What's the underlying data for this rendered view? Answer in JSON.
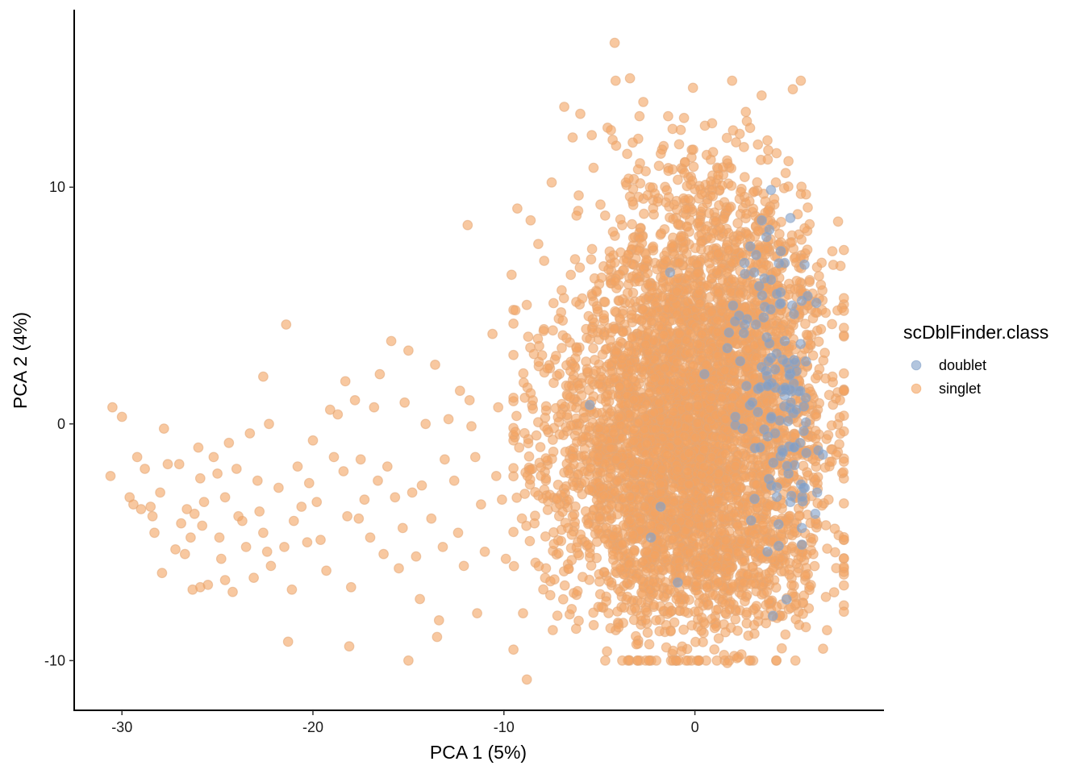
{
  "chart_data": {
    "type": "scatter",
    "title": "",
    "xlabel": "PCA 1 (5%)",
    "ylabel": "PCA 2 (4%)",
    "xlim": [
      -32.5,
      9.9
    ],
    "ylim": [
      -12.1,
      17.5
    ],
    "x_ticks": [
      -30,
      -20,
      -10,
      0
    ],
    "x_tick_labels": [
      "-30",
      "-20",
      "-10",
      "0"
    ],
    "y_ticks": [
      -10,
      0,
      10
    ],
    "y_tick_labels": [
      "-10",
      "0",
      "10"
    ],
    "grid": false,
    "legend": {
      "title": "scDblFinder.class",
      "placement": "right",
      "entries": [
        "doublet",
        "singlet"
      ]
    },
    "point_alpha": 0.6,
    "series": [
      {
        "name": "singlet",
        "color": "#f4a460",
        "clusters": [
          {
            "cx": 0.0,
            "cy": 0.0,
            "sx": 2.9,
            "sy": 4.2,
            "n": 3200
          },
          {
            "cx": -3.5,
            "cy": -1.5,
            "sx": 1.8,
            "sy": 3.0,
            "n": 500
          },
          {
            "cx": 1.0,
            "cy": 6.5,
            "sx": 2.6,
            "sy": 2.8,
            "n": 500
          },
          {
            "cx": 1.0,
            "cy": -6.0,
            "sx": 3.0,
            "sy": 1.4,
            "n": 350
          },
          {
            "cx": 4.5,
            "cy": 0.0,
            "sx": 1.6,
            "sy": 3.5,
            "n": 350
          },
          {
            "cx": -7.0,
            "cy": -1.5,
            "sx": 1.8,
            "sy": 3.0,
            "n": 160
          }
        ],
        "points": [
          [
            -30.5,
            0.7
          ],
          [
            -30.0,
            0.3
          ],
          [
            -30.6,
            -2.2
          ],
          [
            -29.6,
            -3.1
          ],
          [
            -29.4,
            -3.4
          ],
          [
            -29.2,
            -1.4
          ],
          [
            -28.8,
            -1.9
          ],
          [
            -28.5,
            -3.5
          ],
          [
            -28.4,
            -3.9
          ],
          [
            -28.3,
            -4.6
          ],
          [
            -27.8,
            -0.2
          ],
          [
            -27.6,
            -1.7
          ],
          [
            -27.9,
            -6.3
          ],
          [
            -27.0,
            -1.7
          ],
          [
            -26.6,
            -3.6
          ],
          [
            -26.2,
            -3.8
          ],
          [
            -26.4,
            -4.8
          ],
          [
            -26.7,
            -5.5
          ],
          [
            -26.3,
            -7.0
          ],
          [
            -26.0,
            -1.0
          ],
          [
            -25.9,
            -2.3
          ],
          [
            -25.8,
            -4.3
          ],
          [
            -25.7,
            -3.3
          ],
          [
            -25.5,
            -6.8
          ],
          [
            -25.2,
            -1.4
          ],
          [
            -25.0,
            -2.1
          ],
          [
            -24.9,
            -4.8
          ],
          [
            -24.8,
            -5.7
          ],
          [
            -24.6,
            -6.6
          ],
          [
            -24.2,
            -7.1
          ],
          [
            -24.0,
            -1.9
          ],
          [
            -23.9,
            -3.9
          ],
          [
            -23.7,
            -4.1
          ],
          [
            -23.5,
            -5.2
          ],
          [
            -23.3,
            -0.4
          ],
          [
            -22.9,
            -2.4
          ],
          [
            -22.8,
            -3.7
          ],
          [
            -22.6,
            -4.6
          ],
          [
            -22.4,
            -5.4
          ],
          [
            -22.2,
            -6.0
          ],
          [
            -23.1,
            -6.5
          ],
          [
            -24.6,
            -3.1
          ],
          [
            -25.9,
            -6.9
          ],
          [
            -26.9,
            -4.2
          ],
          [
            -27.2,
            -5.3
          ],
          [
            -28.0,
            -2.9
          ],
          [
            -29.0,
            -3.6
          ],
          [
            -24.4,
            -0.8
          ],
          [
            -22.6,
            2.0
          ],
          [
            -22.3,
            0.0
          ],
          [
            -21.8,
            -2.7
          ],
          [
            -21.5,
            -5.2
          ],
          [
            -21.1,
            -7.0
          ],
          [
            -21.0,
            -4.1
          ],
          [
            -21.4,
            4.2
          ],
          [
            -20.8,
            -1.8
          ],
          [
            -20.6,
            -3.5
          ],
          [
            -20.3,
            -5.0
          ],
          [
            -20.0,
            -0.7
          ],
          [
            -19.8,
            -3.3
          ],
          [
            -19.6,
            -4.9
          ],
          [
            -19.3,
            -6.2
          ],
          [
            -18.9,
            -1.4
          ],
          [
            -18.7,
            0.4
          ],
          [
            -18.4,
            -2.0
          ],
          [
            -18.2,
            -3.9
          ],
          [
            -18.0,
            -6.9
          ],
          [
            -18.3,
            1.8
          ],
          [
            -17.8,
            1.0
          ],
          [
            -17.5,
            -1.5
          ],
          [
            -17.3,
            -3.2
          ],
          [
            -17.0,
            -4.8
          ],
          [
            -16.8,
            0.7
          ],
          [
            -16.6,
            -2.4
          ],
          [
            -16.3,
            -5.5
          ],
          [
            -16.1,
            -1.8
          ],
          [
            -15.9,
            3.5
          ],
          [
            -15.7,
            -3.1
          ],
          [
            -15.5,
            -6.1
          ],
          [
            -15.2,
            0.9
          ],
          [
            -15.0,
            3.1
          ],
          [
            -14.8,
            -2.9
          ],
          [
            -14.6,
            -5.6
          ],
          [
            -14.4,
            -7.4
          ],
          [
            -14.1,
            0.0
          ],
          [
            -13.8,
            -4.0
          ],
          [
            -13.6,
            2.5
          ],
          [
            -13.4,
            -8.3
          ],
          [
            -13.1,
            -1.5
          ],
          [
            -12.9,
            0.2
          ],
          [
            -12.6,
            -2.4
          ],
          [
            -12.4,
            -4.6
          ],
          [
            -12.1,
            -6.0
          ],
          [
            -11.8,
            1.0
          ],
          [
            -11.5,
            -1.4
          ],
          [
            -11.2,
            -3.4
          ],
          [
            -11.0,
            -5.4
          ],
          [
            -10.6,
            3.8
          ],
          [
            -10.3,
            0.7
          ],
          [
            -10.1,
            -3.2
          ],
          [
            -9.9,
            -5.7
          ],
          [
            -9.6,
            6.3
          ],
          [
            -9.4,
            4.8
          ],
          [
            -9.2,
            -1.0
          ],
          [
            -9.0,
            -8.0
          ],
          [
            -8.8,
            -10.8
          ],
          [
            -8.6,
            1.3
          ],
          [
            -8.4,
            -4.2
          ],
          [
            -8.2,
            7.6
          ],
          [
            -8.0,
            2.9
          ],
          [
            -7.8,
            -6.1
          ],
          [
            -7.6,
            -3.0
          ],
          [
            -7.4,
            5.1
          ],
          [
            -7.2,
            -8.1
          ],
          [
            -7.0,
            0.4
          ],
          [
            -10.4,
            -2.2
          ],
          [
            -11.7,
            -0.1
          ],
          [
            -12.3,
            1.4
          ],
          [
            -13.2,
            -5.2
          ],
          [
            -14.3,
            -2.6
          ],
          [
            -15.3,
            -4.4
          ],
          [
            -16.5,
            2.1
          ],
          [
            -17.6,
            -4.0
          ],
          [
            -19.1,
            0.6
          ],
          [
            -20.2,
            -2.5
          ],
          [
            -18.1,
            -9.4
          ],
          [
            -21.3,
            -9.2
          ],
          [
            -15.0,
            -10.0
          ],
          [
            -13.5,
            -9.0
          ],
          [
            -11.4,
            -8.0
          ],
          [
            -4.2,
            16.1
          ],
          [
            -3.4,
            14.6
          ],
          [
            -2.7,
            13.6
          ],
          [
            -0.1,
            14.2
          ],
          [
            -2.9,
            13.0
          ],
          [
            -1.4,
            13.0
          ],
          [
            -6.0,
            13.1
          ],
          [
            -6.4,
            12.1
          ],
          [
            -5.4,
            12.2
          ],
          [
            0.9,
            12.7
          ],
          [
            2.0,
            12.4
          ],
          [
            3.3,
            11.8
          ],
          [
            4.9,
            11.1
          ],
          [
            -6.2,
            8.8
          ],
          [
            -9.3,
            9.1
          ],
          [
            -8.6,
            8.6
          ],
          [
            -11.9,
            8.4
          ],
          [
            -7.5,
            10.2
          ],
          [
            -4.7,
            8.8
          ],
          [
            -5.3,
            -8.5
          ],
          [
            -4.0,
            -8.6
          ],
          [
            -1.5,
            -8.5
          ],
          [
            -0.7,
            -9.6
          ],
          [
            1.7,
            -10.1
          ],
          [
            2.2,
            -9.9
          ],
          [
            1.6,
            -8.8
          ],
          [
            3.1,
            -8.5
          ],
          [
            4.3,
            -8.2
          ],
          [
            5.3,
            -7.6
          ],
          [
            6.2,
            -5.5
          ],
          [
            7.0,
            -3.2
          ],
          [
            7.4,
            -1.3
          ],
          [
            7.6,
            1.0
          ],
          [
            7.8,
            1.4
          ],
          [
            7.2,
            2.0
          ],
          [
            6.8,
            3.0
          ],
          [
            6.6,
            4.0
          ],
          [
            6.5,
            5.3
          ],
          [
            6.0,
            6.0
          ],
          [
            5.7,
            7.0
          ],
          [
            4.4,
            7.6
          ],
          [
            3.4,
            8.6
          ],
          [
            2.4,
            9.8
          ],
          [
            1.9,
            10.8
          ],
          [
            -3.0,
            -10.0
          ],
          [
            -5.6,
            -5.1
          ],
          [
            -6.4,
            -3.9
          ],
          [
            -6.6,
            1.6
          ],
          [
            -6.2,
            3.2
          ],
          [
            -5.9,
            5.3
          ]
        ]
      },
      {
        "name": "doublet",
        "color": "#7f9fc8",
        "clusters": [
          {
            "cx": 4.6,
            "cy": 1.6,
            "sx": 0.9,
            "sy": 1.4,
            "n": 40
          },
          {
            "cx": 4.5,
            "cy": -2.5,
            "sx": 1.0,
            "sy": 2.0,
            "n": 30
          },
          {
            "cx": 3.8,
            "cy": 5.5,
            "sx": 1.0,
            "sy": 1.6,
            "n": 22
          }
        ],
        "points": [
          [
            5.0,
            8.7
          ],
          [
            3.5,
            8.6
          ],
          [
            3.9,
            8.2
          ],
          [
            4.5,
            7.3
          ],
          [
            2.9,
            7.5
          ],
          [
            4.7,
            6.8
          ],
          [
            2.6,
            6.8
          ],
          [
            3.1,
            6.4
          ],
          [
            5.1,
            5.0
          ],
          [
            5.6,
            5.2
          ],
          [
            5.9,
            5.4
          ],
          [
            4.5,
            5.1
          ],
          [
            3.6,
            4.5
          ],
          [
            2.0,
            5.0
          ],
          [
            3.2,
            4.2
          ],
          [
            4.7,
            3.5
          ],
          [
            5.2,
            2.7
          ],
          [
            4.2,
            2.3
          ],
          [
            3.5,
            2.4
          ],
          [
            3.8,
            1.6
          ],
          [
            4.7,
            1.2
          ],
          [
            5.8,
            1.1
          ],
          [
            5.3,
            0.6
          ],
          [
            3.3,
            0.5
          ],
          [
            4.0,
            0.3
          ],
          [
            5.7,
            -0.3
          ],
          [
            5.5,
            -0.8
          ],
          [
            4.6,
            -1.2
          ],
          [
            3.4,
            -1.0
          ],
          [
            6.7,
            -1.3
          ],
          [
            6.4,
            -2.9
          ],
          [
            5.0,
            -3.3
          ],
          [
            5.6,
            -4.4
          ],
          [
            6.3,
            -3.8
          ],
          [
            4.0,
            -2.6
          ],
          [
            -2.3,
            -4.8
          ],
          [
            -1.8,
            -3.5
          ],
          [
            -0.9,
            -6.7
          ],
          [
            -5.5,
            0.8
          ],
          [
            -1.3,
            6.4
          ],
          [
            0.5,
            2.1
          ],
          [
            3.0,
            0.9
          ],
          [
            3.8,
            -5.4
          ],
          [
            5.6,
            -5.1
          ],
          [
            2.7,
            1.6
          ],
          [
            1.7,
            3.2
          ],
          [
            2.5,
            -0.2
          ],
          [
            4.2,
            -0.4
          ],
          [
            4.9,
            -2.1
          ],
          [
            3.9,
            3.4
          ]
        ]
      }
    ]
  }
}
